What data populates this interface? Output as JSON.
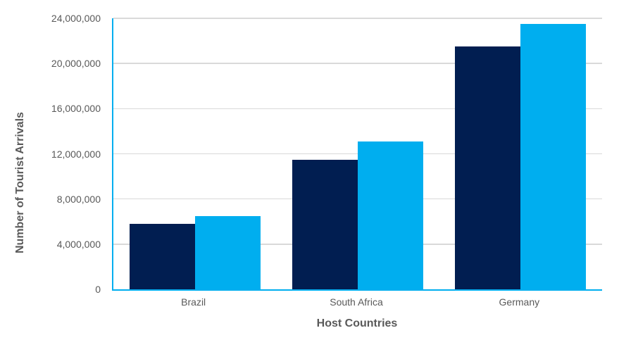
{
  "chart_data": {
    "type": "bar",
    "categories": [
      "Brazil",
      "South Africa",
      "Germany"
    ],
    "series": [
      {
        "name": "series-dark-navy",
        "color": "#011E51",
        "values": [
          5800000,
          11500000,
          21500000
        ]
      },
      {
        "name": "series-light-blue",
        "color": "#00AEEF",
        "values": [
          6500000,
          13100000,
          23500000
        ]
      }
    ],
    "xlabel": "Host Countries",
    "ylabel": "Number of Tourist Arrivals",
    "ylim": [
      0,
      24000000
    ],
    "ytick_step": 4000000,
    "ytick_labels": [
      "0",
      "4,000,000",
      "8,000,000",
      "12,000,000",
      "16,000,000",
      "20,000,000",
      "24,000,000"
    ],
    "grid": "horizontal",
    "legend": "none",
    "title": ""
  },
  "styles": {
    "axis_line_color": "#00AEEF",
    "gridline_color": "#D9D9D9",
    "text_color": "#595959",
    "background_color": "#FFFFFF"
  }
}
